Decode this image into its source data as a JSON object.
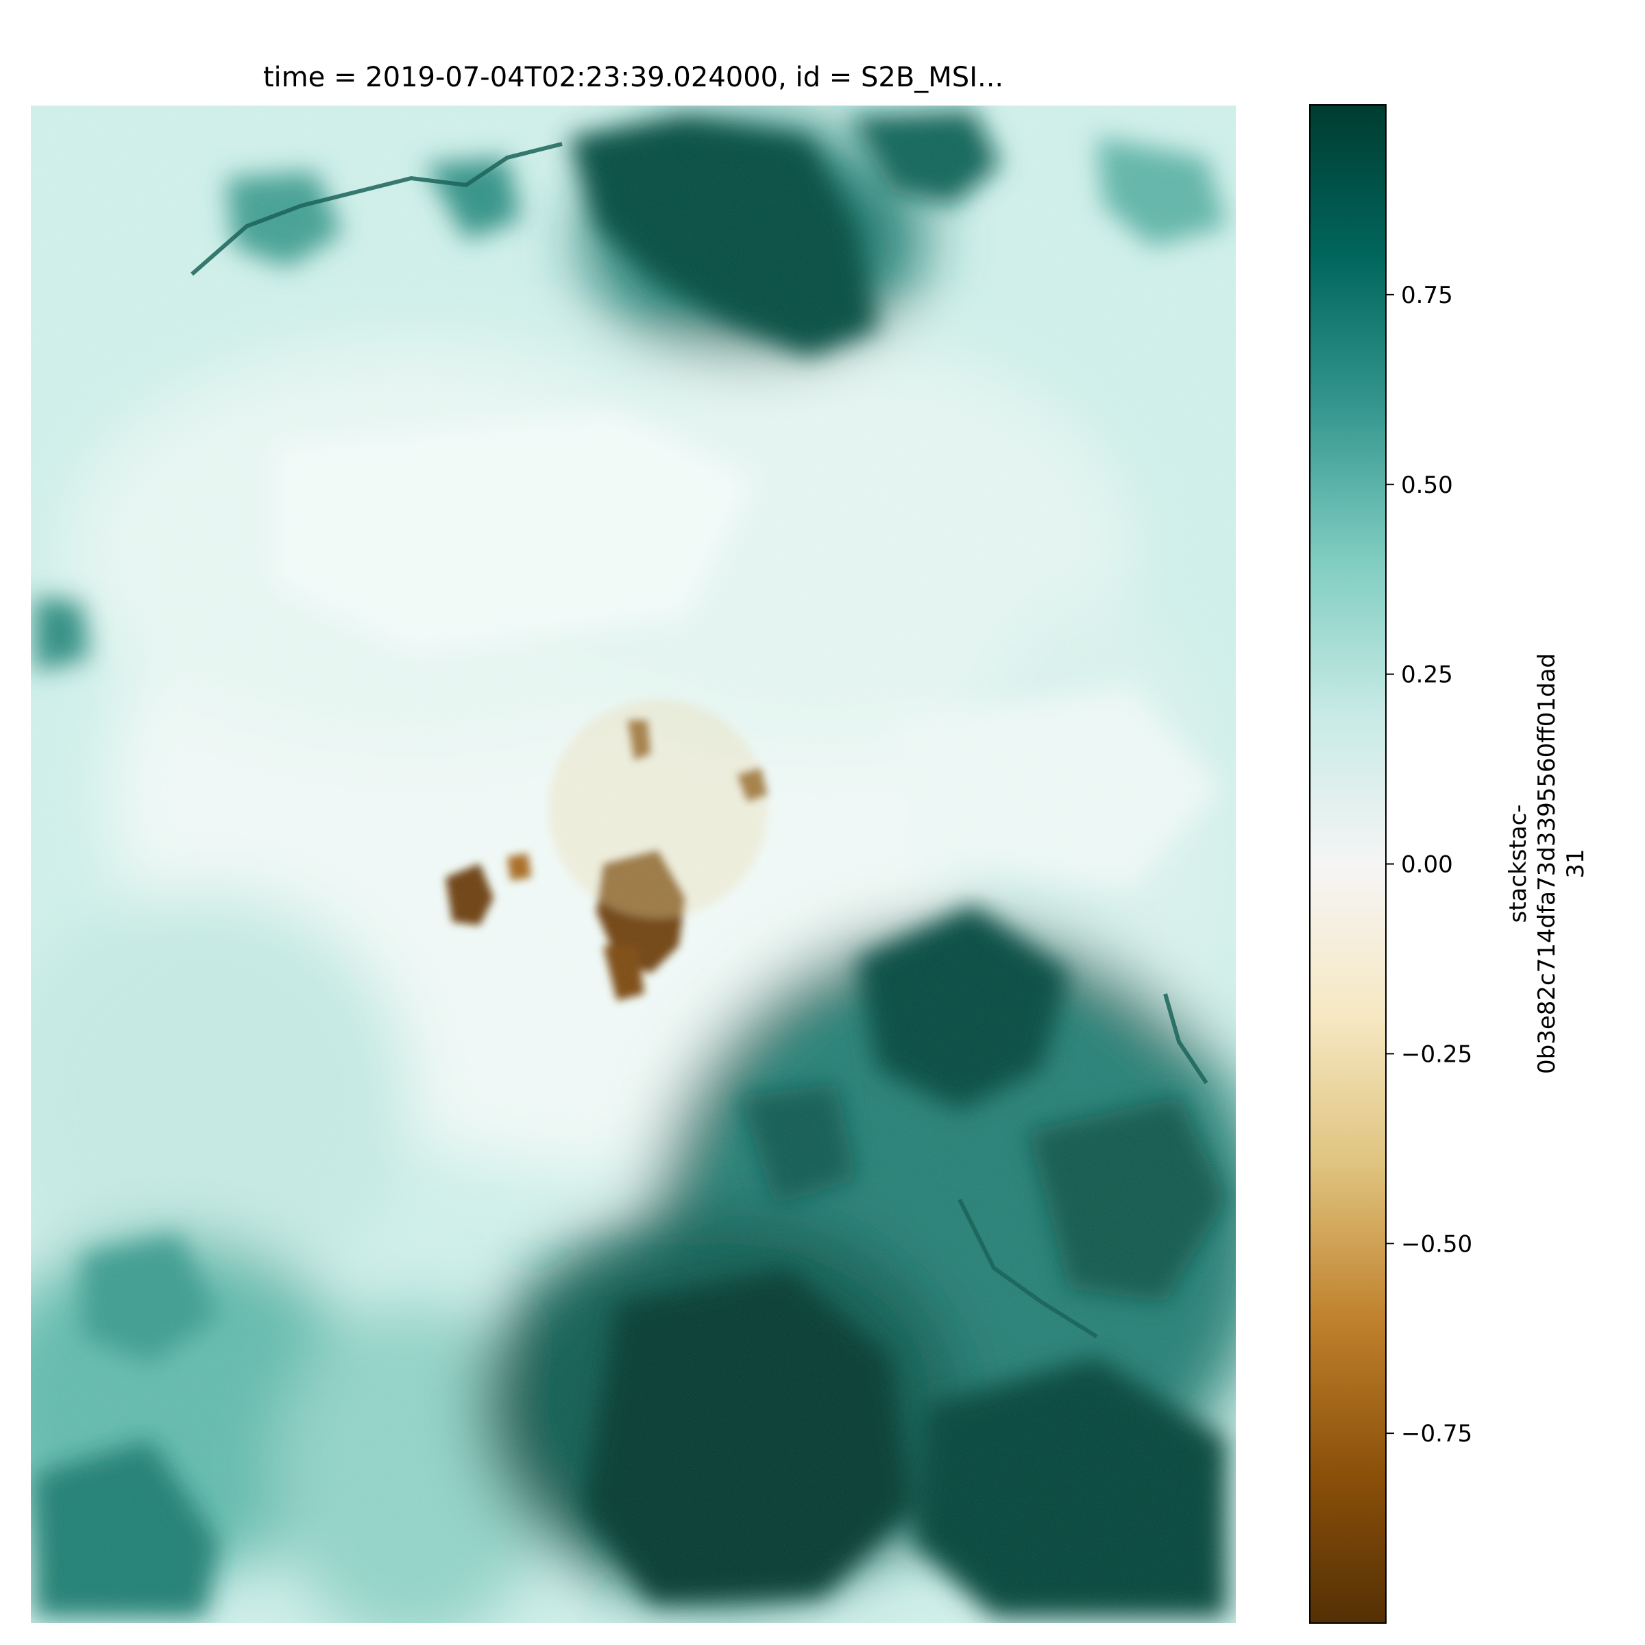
{
  "chart_data": {
    "type": "heatmap",
    "title": "time = 2019-07-04T02:23:39.024000, id = S2B_MSI...",
    "colorbar": {
      "label_lines": [
        "stackstac-",
        "0b3e82c714dfa73d3395560ff01dad",
        "31"
      ],
      "range": [
        -1,
        1
      ],
      "ticks": [
        0.75,
        0.5,
        0.25,
        0.0,
        -0.25,
        -0.5,
        -0.75
      ],
      "tick_labels": [
        "0.75",
        "0.50",
        "0.25",
        "0.00",
        "−0.25",
        "−0.50",
        "−0.75"
      ],
      "colormap": "BrBG",
      "colors": [
        "#543005",
        "#8c510a",
        "#bf812d",
        "#dfc27d",
        "#f6e8c3",
        "#f5f5f5",
        "#c7eae5",
        "#80cdc1",
        "#35978f",
        "#01665e",
        "#003c30"
      ]
    },
    "axes_visible": false,
    "regions": [
      {
        "region": "top-center",
        "value": 0.9
      },
      {
        "region": "bottom-right",
        "value": 0.95
      },
      {
        "region": "bottom-left",
        "value": 0.7
      },
      {
        "region": "center",
        "value": 0.1
      },
      {
        "region": "center brown patches",
        "value": -0.8
      }
    ]
  }
}
